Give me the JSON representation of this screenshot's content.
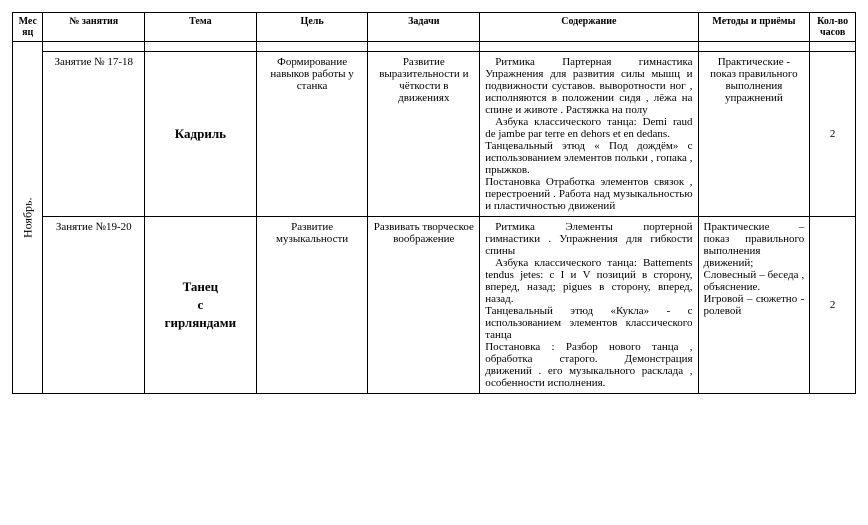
{
  "headers": {
    "month": "Месяц",
    "lesson": "№ занятия",
    "theme": "Тема",
    "goal": "Цель",
    "tasks": "Задачи",
    "content": "Содержание",
    "methods": "Методы и приёмы",
    "hours": "Кол-во часов"
  },
  "month_label": "Ноябрь.",
  "rows": [
    {
      "lesson": "Занятие № 17-18",
      "theme": "Кадриль",
      "goal": "Формирование навыков работы у станка",
      "tasks": "Развитие выразительности и чёткости в движениях",
      "content_p1": "Ритмика Партерная гимнастика Упражнения для развития силы мышц и подвижности суставов. выворотности ног , исполняются в положении сидя , лёжа на спине и животе . Растяжка на полу",
      "content_p2": "Азбука классического танца: Demi raud de jambe par terre en dehors et en dedans.",
      "content_p3": "Танцевальный этюд « Под дождём» с использованием элементов польки , гопака , прыжков.",
      "content_p4": "Постановка Отработка элементов связок , перестроений . Работа над музыкальностью и пластичностью движений",
      "methods": "Практические - показ правильного выполнения упражнений",
      "hours": "2"
    },
    {
      "lesson": "Занятие №19-20",
      "theme_l1": "Танец",
      "theme_l2": "с",
      "theme_l3": "гирляндами",
      "goal": "Развитие музыкальности",
      "tasks": "Развивать творческое воображение",
      "content_p1": "Ритмика Элементы портерной гимнастики . Упражнения для гибкости спины",
      "content_p2": "Азбука классического танца: Battements tendus jetes: с I и V позиций в сторону, вперед, назад; pigues в сторону, вперед, назад.",
      "content_p3": "Танцевальный этюд «Кукла» - с использованием элементов классического танца",
      "content_p4": "Постановка : Разбор нового танца , обработка старого. Демонстрация движений . его музыкального расклада , особенности исполнения.",
      "methods_l1": "Практические – показ правильного выполнения движений;",
      "methods_l2": "Словесный – беседа , объяснение.",
      "methods_l3": "Игровой – сюжетно - ролевой",
      "hours": "2"
    }
  ],
  "style": {
    "font_body": 11,
    "font_header": 10,
    "font_theme": 13,
    "colors": {
      "bg": "#ffffff",
      "border": "#000000",
      "text": "#000000"
    }
  }
}
